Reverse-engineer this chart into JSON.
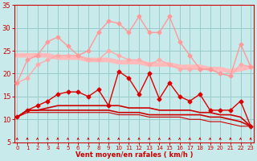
{
  "x": [
    0,
    1,
    2,
    3,
    4,
    5,
    6,
    7,
    8,
    9,
    10,
    11,
    12,
    13,
    14,
    15,
    16,
    17,
    18,
    19,
    20,
    21,
    22,
    23
  ],
  "upper_band_y": [
    24,
    24,
    24,
    24,
    23.5,
    23.5,
    23.5,
    23,
    23,
    23,
    22.5,
    22.5,
    22.5,
    22,
    22,
    22,
    21.5,
    21.5,
    21.5,
    21,
    21,
    20.5,
    21,
    21.5
  ],
  "rafales_upper_y": [
    18,
    23,
    24,
    27,
    28,
    26,
    24,
    25,
    29,
    31.5,
    31,
    29,
    32.5,
    29,
    29,
    32.5,
    27,
    24,
    21,
    21,
    20,
    19.5,
    26.5,
    21.5
  ],
  "rafales_lower_y": [
    18,
    19,
    22,
    23,
    24,
    24,
    24,
    23,
    23,
    25,
    24,
    23,
    23,
    22,
    23,
    22,
    21,
    21,
    21,
    21,
    20,
    19.5,
    22,
    21.5
  ],
  "vent_moyen_y": [
    10.5,
    12,
    13,
    14,
    15.5,
    16,
    16,
    15,
    16.5,
    13,
    20.5,
    19,
    15.5,
    20,
    14.5,
    18,
    15,
    14,
    15.5,
    12,
    12,
    12,
    14,
    8.5
  ],
  "trend1_y": [
    10.5,
    12,
    12,
    12.5,
    13,
    13,
    13,
    13,
    13,
    13,
    13,
    12.5,
    12.5,
    12.5,
    12,
    12,
    12,
    12,
    11.5,
    11.5,
    11,
    11,
    10.5,
    8.5
  ],
  "trend2_y": [
    10.5,
    12,
    12,
    12,
    12,
    12,
    12,
    12,
    12,
    12,
    11.5,
    11.5,
    11.5,
    11,
    11,
    11,
    11,
    11,
    11,
    10.5,
    10.5,
    10,
    9.5,
    8.5
  ],
  "trend3_y": [
    10.5,
    11.5,
    11.5,
    11.5,
    11.5,
    11.5,
    11.5,
    11.5,
    11.5,
    11.5,
    11,
    11,
    11,
    10.5,
    10.5,
    10.5,
    10.5,
    10,
    10,
    9.5,
    9.5,
    9,
    8.5,
    8.5
  ],
  "upper_band_color": "#ffbbbb",
  "rafales_upper_color": "#ff9999",
  "rafales_lower_color": "#ffaaaa",
  "vent_moyen_color": "#dd0000",
  "trend_color": "#cc0000",
  "bg_color": "#c8eaea",
  "grid_color": "#99cccc",
  "tick_color": "#cc0000",
  "xlabel": "Vent moyen/en rafales ( km/h )",
  "ylim": [
    5,
    35
  ],
  "xlim": [
    -0.3,
    23.3
  ],
  "yticks": [
    5,
    10,
    15,
    20,
    25,
    30,
    35
  ],
  "xticks": [
    0,
    1,
    2,
    3,
    4,
    5,
    6,
    7,
    8,
    9,
    10,
    11,
    12,
    13,
    14,
    15,
    16,
    17,
    18,
    19,
    20,
    21,
    22,
    23
  ]
}
